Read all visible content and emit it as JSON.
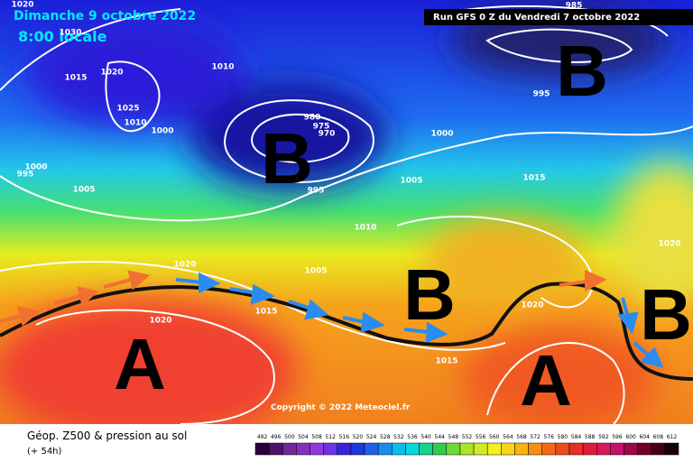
{
  "header": {
    "date": "Dimanche 9 octobre 2022",
    "time": "8:00 locale",
    "run": "Run GFS 0 Z du Vendredi 7 octobre 2022"
  },
  "centers": [
    "B",
    "B",
    "A",
    "B",
    "A",
    "B"
  ],
  "isobar_labels": [
    "1020",
    "1030",
    "1020",
    "1015",
    "1025",
    "1010",
    "1000",
    "1010",
    "1000",
    "995",
    "1005",
    "980",
    "975",
    "970",
    "995",
    "1000",
    "1005",
    "1010",
    "1005",
    "1020",
    "1015",
    "1020",
    "1015",
    "1020",
    "1015",
    "1020",
    "985",
    "995"
  ],
  "copyright": "Copyright © 2022 Meteociel.fr",
  "footer": {
    "title": "Géop. Z500 & pression au sol",
    "lead": "(+ 54h)"
  },
  "colorbar": {
    "levels": [
      492,
      496,
      500,
      504,
      508,
      512,
      516,
      520,
      524,
      528,
      532,
      536,
      540,
      544,
      548,
      552,
      556,
      560,
      564,
      568,
      572,
      576,
      580,
      584,
      588,
      592,
      596,
      600,
      604,
      608,
      612
    ]
  }
}
